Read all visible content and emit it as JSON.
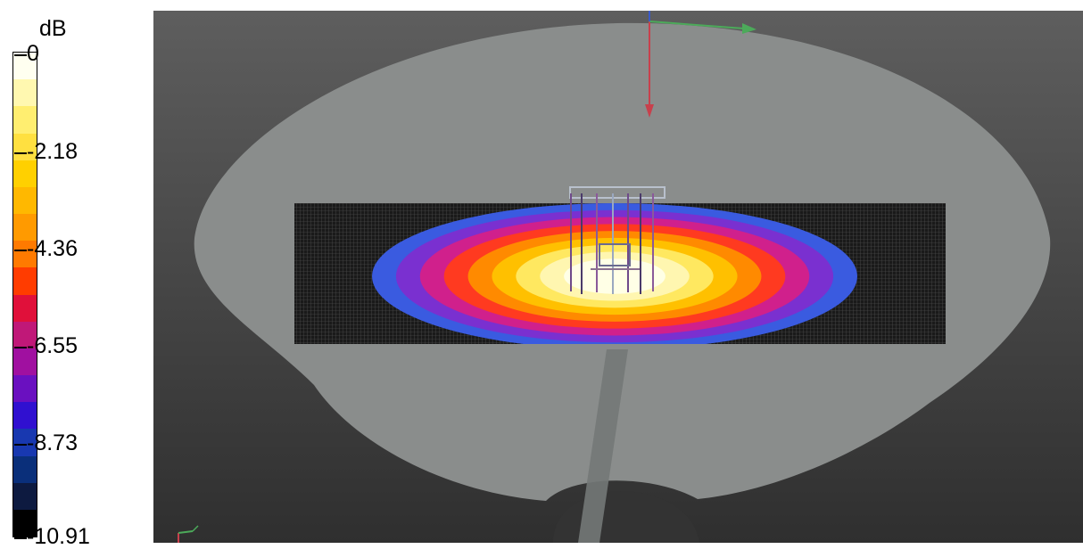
{
  "legend": {
    "unit": "dB",
    "ticks": [
      "0",
      "-2.18",
      "-4.36",
      "-6.55",
      "-8.73",
      "-10.91"
    ],
    "colors": [
      "#fffff0",
      "#fff8b0",
      "#ffee70",
      "#ffe040",
      "#ffd000",
      "#ffb800",
      "#ff9a00",
      "#ff7a00",
      "#ff3c00",
      "#e0103a",
      "#c01878",
      "#a010a0",
      "#6a10c0",
      "#3010d0",
      "#1838b0",
      "#0a2f7a",
      "#0d1a40",
      "#000000"
    ]
  },
  "viewport": {
    "phantom_color": "#8a8d8c",
    "grid_color": "#1a1a1a",
    "field_colors": [
      "#3a5be0",
      "#7a30d0",
      "#d0208c",
      "#ff3a20",
      "#ff8a00",
      "#ffc000",
      "#ffe860",
      "#fff6b0",
      "#ffffe6"
    ]
  }
}
